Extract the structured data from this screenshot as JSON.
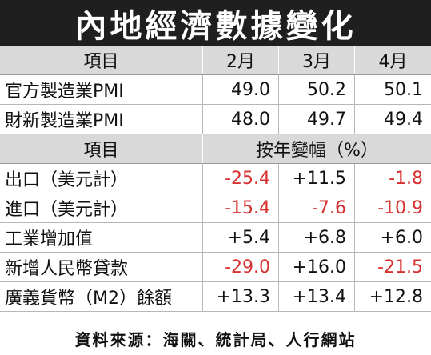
{
  "title": "內地經濟數據變化",
  "header1": {
    "label": "項目",
    "months": [
      "2月",
      "3月",
      "4月"
    ]
  },
  "pmi_rows": [
    {
      "label": "官方製造業PMI",
      "values": [
        "49.0",
        "50.2",
        "50.1"
      ]
    },
    {
      "label": "財新製造業PMI",
      "values": [
        "48.0",
        "49.7",
        "49.4"
      ]
    }
  ],
  "header2": {
    "label": "項目",
    "span": "按年變幅（%）"
  },
  "yoy_rows": [
    {
      "label": "出口（美元計）",
      "values": [
        "-25.4",
        "+11.5",
        "-1.8"
      ]
    },
    {
      "label": "進口（美元計）",
      "values": [
        "-15.4",
        "-7.6",
        "-10.9"
      ]
    },
    {
      "label": "工業增加值",
      "values": [
        "+5.4",
        "+6.8",
        "+6.0"
      ]
    },
    {
      "label": "新增人民幣貸款",
      "values": [
        "-29.0",
        "+16.0",
        "-21.5"
      ]
    },
    {
      "label": "廣義貨幣（M2）餘額",
      "values": [
        "+13.3",
        "+13.4",
        "+12.8"
      ]
    }
  ],
  "source": "資料來源：海關、統計局、人行網站",
  "colors": {
    "negative": "#d6302f",
    "header_bg": "#d9d9d9",
    "title_bg": "#1f1f1f"
  }
}
